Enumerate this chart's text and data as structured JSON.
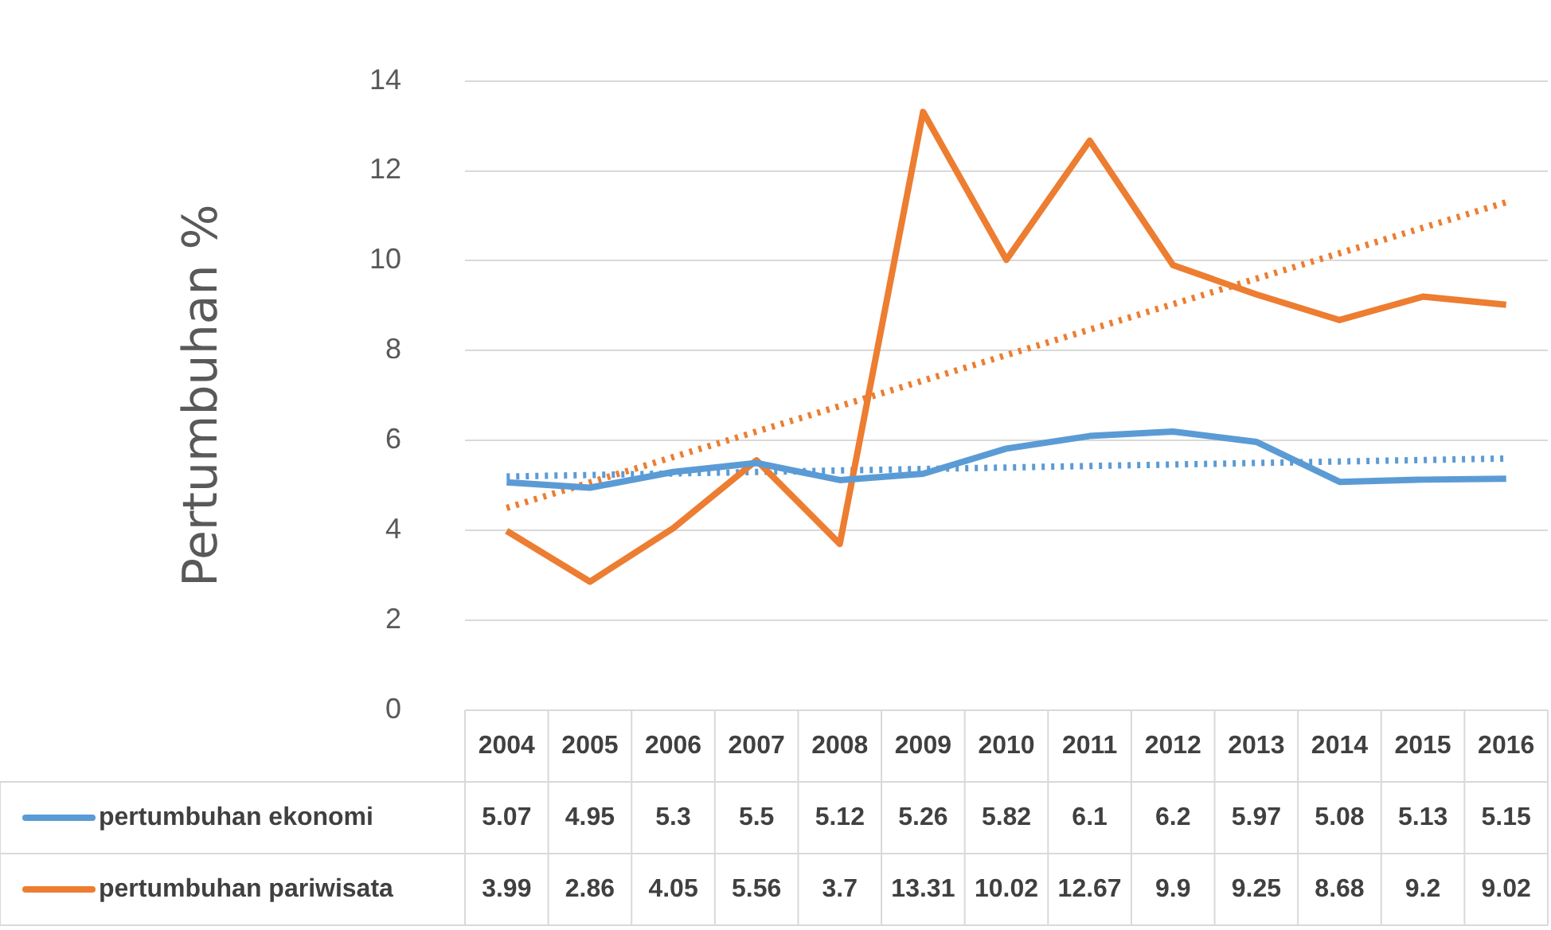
{
  "chart_data": {
    "type": "line",
    "ylabel": "Pertumbuhan %",
    "categories": [
      "2004",
      "2005",
      "2006",
      "2007",
      "2008",
      "2009",
      "2010",
      "2011",
      "2012",
      "2013",
      "2014",
      "2015",
      "2016"
    ],
    "series": [
      {
        "name": "pertumbuhan ekonomi",
        "color": "#5b9bd5",
        "values": [
          5.07,
          4.95,
          5.3,
          5.5,
          5.12,
          5.26,
          5.82,
          6.1,
          6.2,
          5.97,
          5.08,
          5.13,
          5.15
        ],
        "value_labels": [
          "5.07",
          "4.95",
          "5.3",
          "5.5",
          "5.12",
          "5.26",
          "5.82",
          "6.1",
          "6.2",
          "5.97",
          "5.08",
          "5.13",
          "5.15"
        ]
      },
      {
        "name": "pertumbuhan pariwisata",
        "color": "#ed7d31",
        "values": [
          3.99,
          2.86,
          4.05,
          5.56,
          3.7,
          13.31,
          10.02,
          12.67,
          9.9,
          9.25,
          8.68,
          9.2,
          9.02
        ],
        "value_labels": [
          "3.99",
          "2.86",
          "4.05",
          "5.56",
          "3.7",
          "13.31",
          "10.02",
          "12.67",
          "9.9",
          "9.25",
          "8.68",
          "9.2",
          "9.02"
        ]
      },
      {
        "type": "line",
        "color": "#5b9bd5",
        "line_style": "dotted",
        "values": [
          5.2,
          null,
          null,
          null,
          null,
          null,
          null,
          null,
          null,
          null,
          null,
          null,
          5.6
        ]
      },
      {
        "type": "line",
        "color": "#ed7d31",
        "line_style": "dotted",
        "values": [
          4.5,
          null,
          null,
          null,
          null,
          null,
          null,
          null,
          null,
          null,
          null,
          null,
          11.3
        ]
      }
    ],
    "ylim": [
      0,
      14
    ],
    "yticks": [
      0,
      2,
      4,
      6,
      8,
      10,
      12,
      14
    ],
    "grid": "y",
    "legend": "bottom",
    "line_style": "solid",
    "marker": "none"
  }
}
